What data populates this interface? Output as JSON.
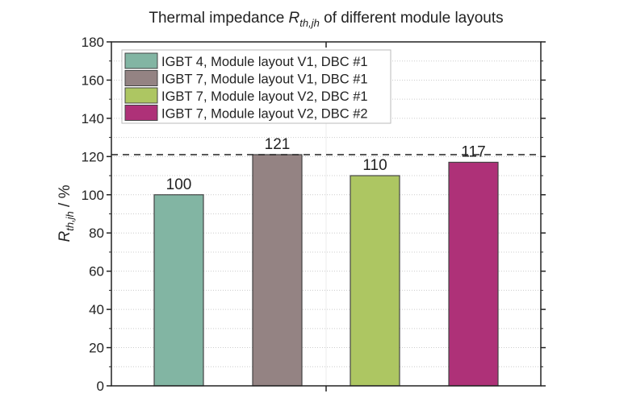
{
  "chart_data": {
    "type": "bar",
    "title": {
      "prefix": "Thermal impedance ",
      "symbol": "R",
      "subscript": "th,jh",
      "suffix": " of different module layouts"
    },
    "ylabel": {
      "symbol": "R",
      "subscript": "th,jh",
      "suffix": " / %"
    },
    "xlabel": "",
    "ylim": [
      0,
      180
    ],
    "yticks": [
      0,
      20,
      40,
      60,
      80,
      100,
      120,
      140,
      160,
      180
    ],
    "grid": true,
    "legend_position": "top-left",
    "reference_line": {
      "value": 121,
      "style": "dashed"
    },
    "series": [
      {
        "name": "IGBT 4, Module layout V1, DBC #1",
        "value": 100,
        "label": "100",
        "color": "#82b5a3"
      },
      {
        "name": "IGBT 7, Module layout V1, DBC #1",
        "value": 121,
        "label": "121",
        "color": "#948383"
      },
      {
        "name": "IGBT 7, Module layout V2, DBC #1",
        "value": 110,
        "label": "110",
        "color": "#adc662"
      },
      {
        "name": "IGBT 7, Module layout V2, DBC #2",
        "value": 117,
        "label": "117",
        "color": "#ae3178"
      }
    ]
  }
}
